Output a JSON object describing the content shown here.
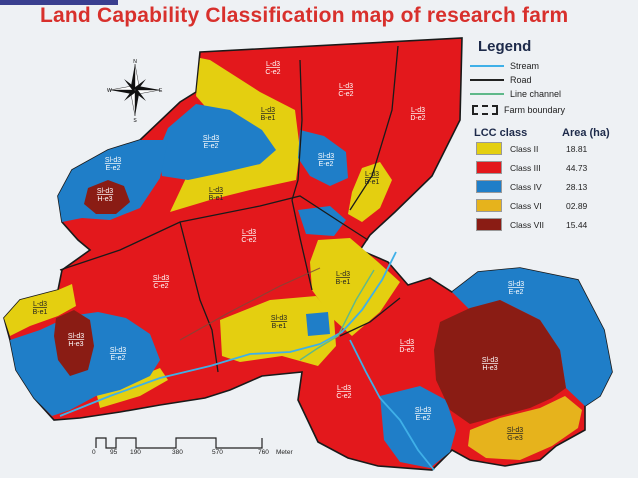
{
  "title": "Land Capability Classification map of research farm",
  "legend": {
    "title": "Legend",
    "lines": [
      {
        "label": "Stream",
        "kind": "stream"
      },
      {
        "label": "Road",
        "kind": "road"
      },
      {
        "label": "Line channel",
        "kind": "canal"
      },
      {
        "label": "Farm boundary",
        "kind": "boundary"
      }
    ],
    "class_header": "LCC class",
    "area_header": "Area (ha)",
    "classes": [
      {
        "name": "Class II",
        "area": "18.81",
        "color": "#e4cf10"
      },
      {
        "name": "Class III",
        "area": "44.73",
        "color": "#e3181c"
      },
      {
        "name": "Class IV",
        "area": "28.13",
        "color": "#1f7ec8"
      },
      {
        "name": "Class VI",
        "area": "02.89",
        "color": "#e6b31c"
      },
      {
        "name": "Class VII",
        "area": "15.44",
        "color": "#8a1c14"
      }
    ]
  },
  "compass": {
    "n": "N",
    "s": "S",
    "e": "E",
    "w": "W"
  },
  "scale": {
    "ticks": [
      "0",
      "95",
      "190",
      "380",
      "570",
      "760"
    ],
    "unit": "Meter"
  },
  "parcels": [
    {
      "code": "L-d3",
      "sub": "C-e2"
    },
    {
      "code": "L-d3",
      "sub": "C-e2"
    },
    {
      "code": "L-d3",
      "sub": "D-e2"
    },
    {
      "code": "L-d3",
      "sub": "B-e1"
    },
    {
      "code": "Sl-d3",
      "sub": "E-e2"
    },
    {
      "code": "Sl-d3",
      "sub": "E-e2"
    },
    {
      "code": "L-d3",
      "sub": "B-e1"
    },
    {
      "code": "L-d3",
      "sub": "B-e1"
    },
    {
      "code": "Sl-d3",
      "sub": "E-e2"
    },
    {
      "code": "Sl-d3",
      "sub": "H-e3"
    },
    {
      "code": "L-d3",
      "sub": "C-e2"
    },
    {
      "code": "Sl-d3",
      "sub": "C-e2"
    },
    {
      "code": "L-d3",
      "sub": "B-e1"
    },
    {
      "code": "Sl-d3",
      "sub": "E-e2"
    },
    {
      "code": "L-d3",
      "sub": "B-e1"
    },
    {
      "code": "Sl-d3",
      "sub": "H-e3"
    },
    {
      "code": "Sl-d3",
      "sub": "E-e2"
    },
    {
      "code": "Sl-d3",
      "sub": "B-e1"
    },
    {
      "code": "L-d3",
      "sub": "D-e2"
    },
    {
      "code": "Sl-d3",
      "sub": "H-e3"
    },
    {
      "code": "L-d3",
      "sub": "C-e2"
    },
    {
      "code": "Sl-d3",
      "sub": "E-e2"
    },
    {
      "code": "Sl-d3",
      "sub": "G-e3"
    }
  ]
}
